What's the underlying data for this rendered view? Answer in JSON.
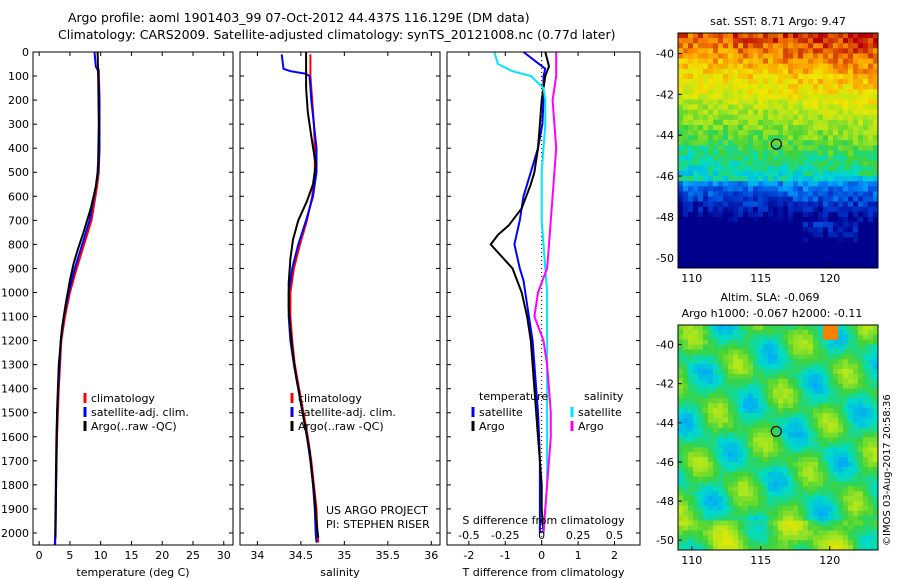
{
  "header": {
    "line1": "Argo profile: aoml 1901403_99 07-Oct-2012 44.437S 116.129E (DM data)",
    "line2": "Climatology: CARS2009. Satellite-adjusted climatology: synTS_20121008.nc (0.77d later)"
  },
  "side_label": "©IMOS 03-Aug-2017 20:58:36",
  "chart_data": [
    {
      "type": "line",
      "id": "temperature",
      "xlabel": "temperature (deg C)",
      "ylim": [
        2050,
        0
      ],
      "xlim": [
        -1,
        31.5
      ],
      "xticks": [
        0,
        5,
        10,
        15,
        20,
        25,
        30
      ],
      "yticks": [
        0,
        100,
        200,
        300,
        400,
        500,
        600,
        700,
        800,
        900,
        1000,
        1100,
        1200,
        1300,
        1400,
        1500,
        1600,
        1700,
        1800,
        1900,
        2000
      ],
      "legend": [
        "climatology",
        "satellite-adj. clim.",
        "Argo(..raw -QC)"
      ],
      "series": [
        {
          "name": "climatology",
          "color": "#ff0000",
          "points": [
            [
              9.7,
              70
            ],
            [
              9.8,
              200
            ],
            [
              9.8,
              400
            ],
            [
              9.7,
              500
            ],
            [
              9.4,
              560
            ],
            [
              8.5,
              700
            ],
            [
              7.3,
              800
            ],
            [
              6.1,
              900
            ],
            [
              5.0,
              1000
            ],
            [
              4.2,
              1100
            ],
            [
              3.6,
              1200
            ],
            [
              3.2,
              1400
            ],
            [
              2.9,
              1600
            ],
            [
              2.75,
              1800
            ],
            [
              2.65,
              2000
            ],
            [
              2.6,
              2050
            ]
          ]
        },
        {
          "name": "satellite-adj. clim.",
          "color": "#0000ff",
          "points": [
            [
              9.0,
              0
            ],
            [
              9.2,
              60
            ],
            [
              9.6,
              80
            ],
            [
              9.8,
              200
            ],
            [
              9.8,
              400
            ],
            [
              9.6,
              500
            ],
            [
              9.2,
              560
            ],
            [
              8.2,
              700
            ],
            [
              7.0,
              800
            ],
            [
              5.8,
              900
            ],
            [
              4.8,
              1000
            ],
            [
              4.0,
              1100
            ],
            [
              3.5,
              1200
            ],
            [
              3.1,
              1400
            ],
            [
              2.8,
              1600
            ],
            [
              2.7,
              1800
            ],
            [
              2.6,
              2000
            ],
            [
              2.55,
              2050
            ]
          ]
        },
        {
          "name": "Argo(..raw -QC)",
          "color": "#000000",
          "points": [
            [
              9.5,
              0
            ],
            [
              9.6,
              100
            ],
            [
              9.7,
              300
            ],
            [
              9.6,
              450
            ],
            [
              9.5,
              500
            ],
            [
              9.2,
              560
            ],
            [
              8.4,
              650
            ],
            [
              7.2,
              750
            ],
            [
              6.3,
              820
            ],
            [
              5.6,
              880
            ],
            [
              5.0,
              950
            ],
            [
              4.3,
              1050
            ],
            [
              3.7,
              1150
            ],
            [
              3.2,
              1300
            ],
            [
              2.9,
              1500
            ],
            [
              2.8,
              1700
            ],
            [
              2.7,
              1900
            ],
            [
              2.65,
              2020
            ]
          ]
        }
      ]
    },
    {
      "type": "line",
      "id": "salinity",
      "xlabel": "salinity",
      "ylim": [
        2050,
        0
      ],
      "xlim": [
        33.8,
        36.1
      ],
      "xticks": [
        34,
        34.5,
        35,
        35.5,
        36
      ],
      "legend": [
        "climatology",
        "satellite-adj. clim.",
        "Argo(..raw -QC)"
      ],
      "series": [
        {
          "name": "climatology",
          "color": "#ff0000",
          "points": [
            [
              34.61,
              10
            ],
            [
              34.61,
              100
            ],
            [
              34.63,
              200
            ],
            [
              34.65,
              300
            ],
            [
              34.66,
              400
            ],
            [
              34.66,
              500
            ],
            [
              34.63,
              600
            ],
            [
              34.57,
              700
            ],
            [
              34.49,
              800
            ],
            [
              34.42,
              900
            ],
            [
              34.38,
              1000
            ],
            [
              34.38,
              1100
            ],
            [
              34.4,
              1200
            ],
            [
              34.43,
              1300
            ],
            [
              34.48,
              1400
            ],
            [
              34.53,
              1500
            ],
            [
              34.58,
              1600
            ],
            [
              34.62,
              1700
            ],
            [
              34.65,
              1800
            ],
            [
              34.68,
              1900
            ],
            [
              34.69,
              2000
            ],
            [
              34.7,
              2040
            ]
          ]
        },
        {
          "name": "satellite-adj. clim.",
          "color": "#0000ff",
          "points": [
            [
              34.28,
              10
            ],
            [
              34.3,
              70
            ],
            [
              34.38,
              80
            ],
            [
              34.55,
              90
            ],
            [
              34.6,
              100
            ],
            [
              34.62,
              200
            ],
            [
              34.65,
              300
            ],
            [
              34.68,
              400
            ],
            [
              34.68,
              500
            ],
            [
              34.64,
              600
            ],
            [
              34.56,
              700
            ],
            [
              34.47,
              800
            ],
            [
              34.4,
              900
            ],
            [
              34.36,
              1000
            ],
            [
              34.36,
              1100
            ],
            [
              34.38,
              1200
            ],
            [
              34.42,
              1300
            ],
            [
              34.47,
              1400
            ],
            [
              34.52,
              1500
            ],
            [
              34.57,
              1600
            ],
            [
              34.61,
              1700
            ],
            [
              34.64,
              1800
            ],
            [
              34.66,
              1900
            ],
            [
              34.67,
              2000
            ],
            [
              34.68,
              2040
            ]
          ]
        },
        {
          "name": "Argo(..raw -QC)",
          "color": "#000000",
          "points": [
            [
              34.56,
              0
            ],
            [
              34.56,
              150
            ],
            [
              34.58,
              250
            ],
            [
              34.62,
              350
            ],
            [
              34.65,
              420
            ],
            [
              34.67,
              470
            ],
            [
              34.64,
              550
            ],
            [
              34.57,
              620
            ],
            [
              34.47,
              700
            ],
            [
              34.41,
              780
            ],
            [
              34.38,
              860
            ],
            [
              34.36,
              960
            ],
            [
              34.36,
              1060
            ],
            [
              34.38,
              1160
            ],
            [
              34.41,
              1260
            ],
            [
              34.45,
              1360
            ],
            [
              34.5,
              1460
            ],
            [
              34.55,
              1560
            ],
            [
              34.6,
              1660
            ],
            [
              34.63,
              1760
            ],
            [
              34.66,
              1860
            ],
            [
              34.68,
              1960
            ],
            [
              34.7,
              2020
            ]
          ]
        }
      ]
    },
    {
      "type": "line",
      "id": "differences",
      "xlabel": "T difference from climatology",
      "top_xlabel": "S difference from climatology",
      "ylim": [
        2050,
        0
      ],
      "xlim": [
        -2.6,
        2.7
      ],
      "xticks": [
        -2,
        -1,
        0,
        1,
        2
      ],
      "xticklabels": [
        "-2",
        "-1",
        "0",
        "1",
        "2"
      ],
      "top_xticks": [
        -2,
        -1,
        0,
        1,
        2
      ],
      "top_xticklabels": [
        "-0.5",
        "-0.25",
        "0",
        "0.25",
        "0.5"
      ],
      "legend_groups": [
        {
          "title": "temperature",
          "items": [
            "satellite",
            "Argo"
          ]
        },
        {
          "title": "salinity",
          "items": [
            "satellite",
            "Argo"
          ]
        }
      ],
      "series": [
        {
          "name": "satellite",
          "group": "temperature",
          "color": "#0000ff",
          "points": [
            [
              -0.5,
              0
            ],
            [
              0.1,
              70
            ],
            [
              0.05,
              100
            ],
            [
              0.05,
              200
            ],
            [
              0.02,
              300
            ],
            [
              -0.1,
              400
            ],
            [
              -0.3,
              500
            ],
            [
              -0.5,
              600
            ],
            [
              -0.6,
              700
            ],
            [
              -0.75,
              800
            ],
            [
              -0.6,
              900
            ],
            [
              -0.5,
              950
            ],
            [
              -0.45,
              1000
            ],
            [
              -0.35,
              1100
            ],
            [
              -0.25,
              1200
            ],
            [
              -0.2,
              1300
            ],
            [
              -0.15,
              1400
            ],
            [
              -0.1,
              1500
            ],
            [
              -0.07,
              1600
            ],
            [
              -0.05,
              1700
            ],
            [
              -0.05,
              1800
            ],
            [
              -0.05,
              1900
            ],
            [
              -0.05,
              2000
            ]
          ]
        },
        {
          "name": "Argo",
          "group": "temperature",
          "color": "#000000",
          "points": [
            [
              0.1,
              0
            ],
            [
              0.2,
              60
            ],
            [
              0.1,
              100
            ],
            [
              0.05,
              150
            ],
            [
              0.0,
              200
            ],
            [
              -0.05,
              300
            ],
            [
              -0.1,
              400
            ],
            [
              -0.2,
              500
            ],
            [
              -0.3,
              550
            ],
            [
              -0.55,
              650
            ],
            [
              -0.9,
              720
            ],
            [
              -1.2,
              760
            ],
            [
              -1.4,
              800
            ],
            [
              -1.1,
              850
            ],
            [
              -0.8,
              900
            ],
            [
              -0.55,
              1000
            ],
            [
              -0.4,
              1100
            ],
            [
              -0.3,
              1200
            ],
            [
              -0.25,
              1300
            ],
            [
              -0.2,
              1400
            ],
            [
              -0.15,
              1500
            ],
            [
              -0.1,
              1600
            ],
            [
              -0.05,
              1700
            ],
            [
              0.0,
              1800
            ],
            [
              0.0,
              1900
            ],
            [
              0.05,
              2000
            ]
          ]
        },
        {
          "name": "satellite",
          "group": "salinity",
          "color": "#00e5ff",
          "points": [
            [
              -1.3,
              0
            ],
            [
              -1.2,
              50
            ],
            [
              -0.8,
              80
            ],
            [
              -0.3,
              100
            ],
            [
              0.05,
              150
            ],
            [
              0.1,
              200
            ],
            [
              0.1,
              300
            ],
            [
              0.05,
              400
            ],
            [
              0.0,
              500
            ],
            [
              0.0,
              600
            ],
            [
              0.0,
              700
            ],
            [
              0.05,
              800
            ],
            [
              0.1,
              900
            ],
            [
              0.15,
              1000
            ],
            [
              0.15,
              1100
            ],
            [
              0.15,
              1200
            ],
            [
              0.15,
              1300
            ],
            [
              0.15,
              1400
            ],
            [
              0.15,
              1500
            ],
            [
              0.15,
              1600
            ],
            [
              0.15,
              1700
            ],
            [
              0.15,
              1800
            ],
            [
              0.1,
              1900
            ],
            [
              0.05,
              2000
            ]
          ]
        },
        {
          "name": "Argo",
          "group": "salinity",
          "color": "#ff00ff",
          "points": [
            [
              0.4,
              0
            ],
            [
              0.4,
              100
            ],
            [
              0.35,
              150
            ],
            [
              0.3,
              200
            ],
            [
              0.35,
              300
            ],
            [
              0.4,
              400
            ],
            [
              0.35,
              500
            ],
            [
              0.3,
              600
            ],
            [
              0.25,
              700
            ],
            [
              0.2,
              800
            ],
            [
              0.15,
              900
            ],
            [
              -0.1,
              1000
            ],
            [
              -0.2,
              1100
            ],
            [
              0.05,
              1200
            ],
            [
              0.15,
              1300
            ],
            [
              0.2,
              1400
            ],
            [
              0.25,
              1500
            ],
            [
              0.25,
              1600
            ],
            [
              0.2,
              1700
            ],
            [
              0.15,
              1800
            ],
            [
              0.1,
              1900
            ],
            [
              0.05,
              2000
            ]
          ]
        }
      ],
      "annotations": [
        "US ARGO PROJECT",
        "PI: STEPHEN RISER"
      ]
    },
    {
      "type": "heatmap",
      "id": "sst-map",
      "title": "sat. SST: 8.71  Argo: 9.47",
      "xlim": [
        109,
        123.5
      ],
      "ylim": [
        -50.5,
        -39
      ],
      "xticks": [
        110,
        115,
        120
      ],
      "yticks": [
        -40,
        -42,
        -44,
        -46,
        -48,
        -50
      ],
      "yticklabels": [
        "-40",
        "-42",
        "-44",
        "-46",
        "-48",
        "-50"
      ],
      "marker": [
        116.13,
        -44.44
      ]
    },
    {
      "type": "heatmap",
      "id": "sla-map",
      "title": "Altim. SLA: -0.069",
      "subtitle": "Argo h1000: -0.067 h2000: -0.11",
      "xlim": [
        109,
        123.5
      ],
      "ylim": [
        -50.5,
        -39
      ],
      "xticks": [
        110,
        115,
        120
      ],
      "yticks": [
        -40,
        -42,
        -44,
        -46,
        -48,
        -50
      ],
      "yticklabels": [
        "-40",
        "-42",
        "-44",
        "-46",
        "-48",
        "-50"
      ],
      "marker": [
        116.13,
        -44.44
      ]
    }
  ]
}
